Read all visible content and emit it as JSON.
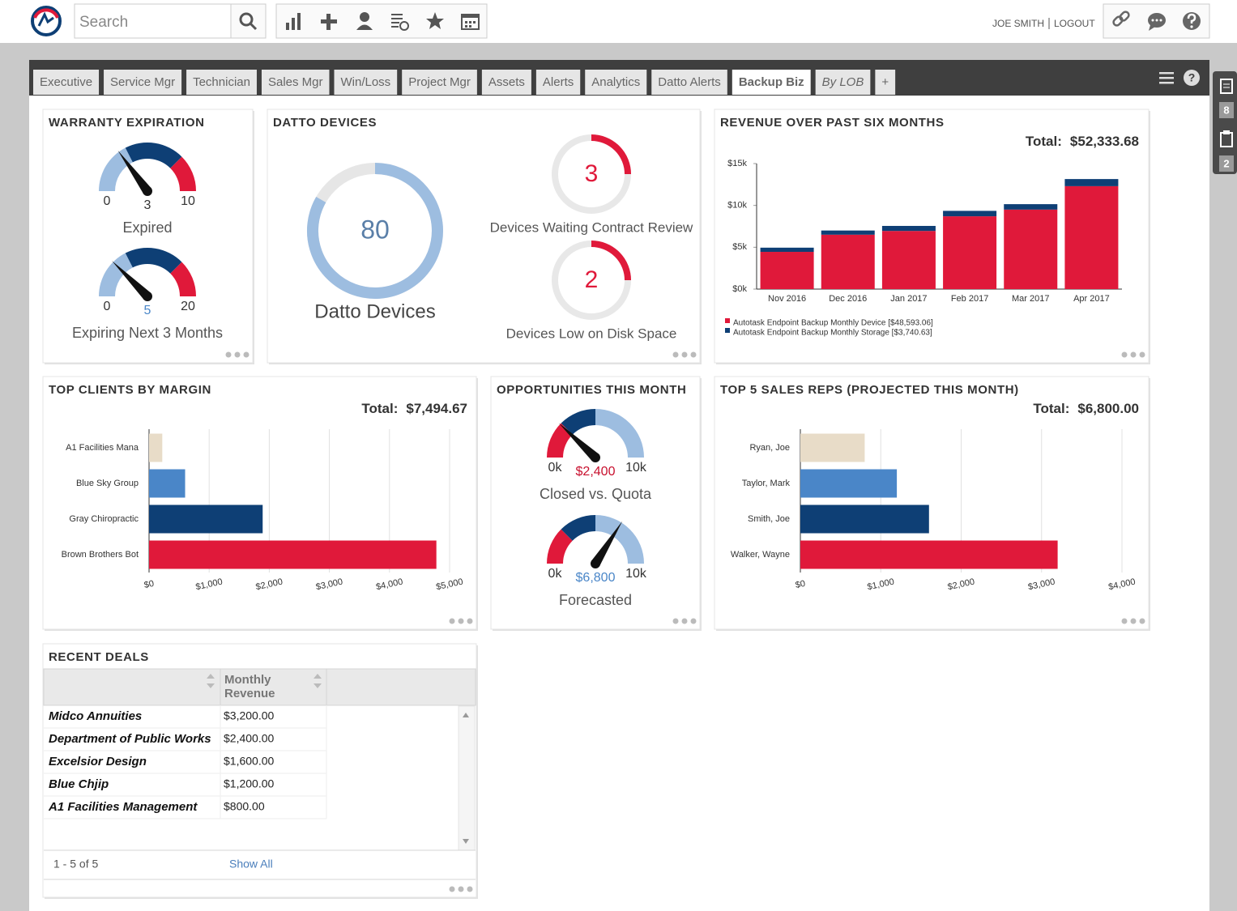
{
  "header": {
    "search_placeholder": "Search",
    "user": "JOE SMITH",
    "logout": "LOGOUT"
  },
  "tabs": [
    "Executive",
    "Service Mgr",
    "Technician",
    "Sales Mgr",
    "Win/Loss",
    "Project Mgr",
    "Assets",
    "Alerts",
    "Analytics",
    "Datto Alerts",
    "Backup Biz",
    "By LOB",
    "+"
  ],
  "active_tab": 10,
  "side_badges": [
    8,
    2
  ],
  "warranty": {
    "title": "WARRANTY EXPIRATION",
    "gauges": [
      {
        "min": 0,
        "max": 10,
        "value": 3,
        "label": "Expired",
        "value_color": "#333333"
      },
      {
        "min": 0,
        "max": 20,
        "value": 5,
        "label": "Expiring Next 3 Months",
        "value_color": "#4a86c8"
      }
    ]
  },
  "datto": {
    "title": "DATTO DEVICES",
    "main": {
      "value": 80,
      "label": "Datto Devices"
    },
    "small": [
      {
        "value": 3,
        "label": "Devices Waiting Contract Review"
      },
      {
        "value": 2,
        "label": "Devices Low on Disk Space"
      }
    ]
  },
  "revenue": {
    "title": "REVENUE OVER PAST SIX MONTHS",
    "total_label": "Total:",
    "total": "$52,333.68",
    "type": "stacked-bar",
    "categories": [
      "Nov 2016",
      "Dec 2016",
      "Jan 2017",
      "Feb 2017",
      "Mar 2017",
      "Apr 2017"
    ],
    "series": [
      {
        "name": "Autotask Endpoint Backup Monthly Device [$48,593.06]",
        "color": "#e0193a",
        "values": [
          4450,
          6500,
          6950,
          8700,
          9500,
          12300
        ]
      },
      {
        "name": "Autotask Endpoint Backup Monthly Storage [$3,740.63]",
        "color": "#0e3f75",
        "values": [
          500,
          500,
          600,
          650,
          650,
          850
        ]
      }
    ],
    "ylim": [
      0,
      15000
    ],
    "yticks": [
      {
        "value": 0,
        "label": "$0k"
      },
      {
        "value": 5000,
        "label": "$5k"
      },
      {
        "value": 10000,
        "label": "$10k"
      },
      {
        "value": 15000,
        "label": "$15k"
      }
    ]
  },
  "top_clients": {
    "title": "TOP CLIENTS BY MARGIN",
    "total_label": "Total:",
    "total": "$7,494.67",
    "type": "hbar",
    "categories": [
      "A1 Facilities Mana",
      "Blue Sky Group",
      "Gray Chiropractic",
      "Brown Brothers Bot"
    ],
    "values": [
      220,
      600,
      1890,
      4780
    ],
    "colors": [
      "#e8dcc8",
      "#4a86c8",
      "#0e3f75",
      "#e0193a"
    ],
    "xlim": [
      0,
      5000
    ],
    "xticks": [
      {
        "value": 0,
        "label": "$0"
      },
      {
        "value": 1000,
        "label": "$1,000"
      },
      {
        "value": 2000,
        "label": "$2,000"
      },
      {
        "value": 3000,
        "label": "$3,000"
      },
      {
        "value": 4000,
        "label": "$4,000"
      },
      {
        "value": 5000,
        "label": "$5,000"
      }
    ]
  },
  "opportunities": {
    "title": "OPPORTUNITIES THIS MONTH",
    "gauges": [
      {
        "min": {
          "value": 0,
          "label": "0k"
        },
        "max": {
          "value": 10000,
          "label": "10k"
        },
        "value": 2400,
        "value_label": "$2,400",
        "label": "Closed vs. Quota",
        "value_color": "#c8102e"
      },
      {
        "min": {
          "value": 0,
          "label": "0k"
        },
        "max": {
          "value": 10000,
          "label": "10k"
        },
        "value": 6800,
        "value_label": "$6,800",
        "label": "Forecasted",
        "value_color": "#4a86c8"
      }
    ]
  },
  "sales_reps": {
    "title": "TOP 5 SALES REPS (PROJECTED THIS MONTH)",
    "total_label": "Total:",
    "total": "$6,800.00",
    "type": "hbar",
    "categories": [
      "Ryan, Joe",
      "Taylor, Mark",
      "Smith, Joe",
      "Walker, Wayne"
    ],
    "values": [
      800,
      1200,
      1600,
      3200
    ],
    "colors": [
      "#e8dcc8",
      "#4a86c8",
      "#0e3f75",
      "#e0193a"
    ],
    "xlim": [
      0,
      4000
    ],
    "xticks": [
      {
        "value": 0,
        "label": "$0"
      },
      {
        "value": 1000,
        "label": "$1,000"
      },
      {
        "value": 2000,
        "label": "$2,000"
      },
      {
        "value": 3000,
        "label": "$3,000"
      },
      {
        "value": 4000,
        "label": "$4,000"
      }
    ]
  },
  "recent_deals": {
    "title": "RECENT DEALS",
    "revenue_header": "Monthly Revenue",
    "rows": [
      [
        "Midco Annuities",
        "$3,200.00"
      ],
      [
        "Department of Public Works",
        "$2,400.00"
      ],
      [
        "Excelsior Design",
        "$1,600.00"
      ],
      [
        "Blue Chjip",
        "$1,200.00"
      ],
      [
        "A1 Facilities Management",
        "$800.00"
      ]
    ],
    "pager": "1 - 5 of 5",
    "show_all": "Show All"
  }
}
